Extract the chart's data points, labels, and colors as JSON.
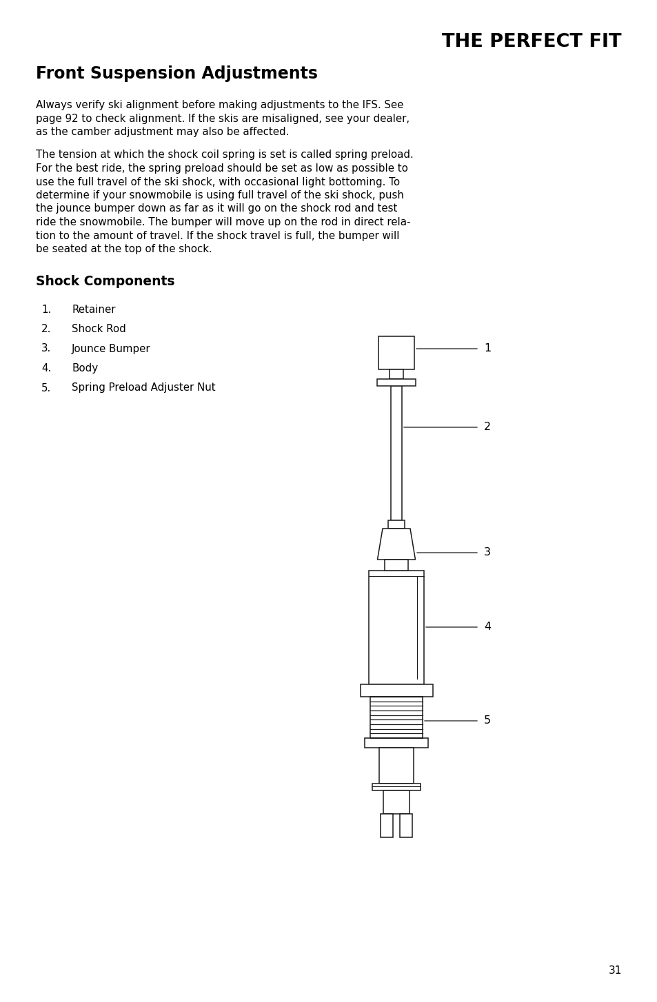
{
  "page_number": "31",
  "bg": "#ffffff",
  "tc": "#000000",
  "title_right": "THE PERFECT FIT",
  "title_left": "Front Suspension Adjustments",
  "p1_lines": [
    "Always verify ski alignment before making adjustments to the IFS. See",
    "page 92 to check alignment. If the skis are misaligned, see your dealer,",
    "as the camber adjustment may also be affected."
  ],
  "p2_lines": [
    "The tension at which the shock coil spring is set is called spring preload.",
    "For the best ride, the spring preload should be set as low as possible to",
    "use the full travel of the ski shock, with occasional light bottoming. To",
    "determine if your snowmobile is using full travel of the ski shock, push",
    "the jounce bumper down as far as it will go on the shock rod and test",
    "ride the snowmobile. The bumper will move up on the rod in direct rela-",
    "tion to the amount of travel. If the shock travel is full, the bumper will",
    "be seated at the top of the shock."
  ],
  "section_title": "Shock Components",
  "list_items": [
    [
      "1.",
      "Retainer"
    ],
    [
      "2.",
      "Shock Rod"
    ],
    [
      "3.",
      "Jounce Bumper"
    ],
    [
      "4.",
      "Body"
    ],
    [
      "5.",
      "Spring Preload Adjuster Nut"
    ]
  ],
  "lw": 1.1,
  "lc": "#1a1a1a",
  "fc": "#ffffff"
}
